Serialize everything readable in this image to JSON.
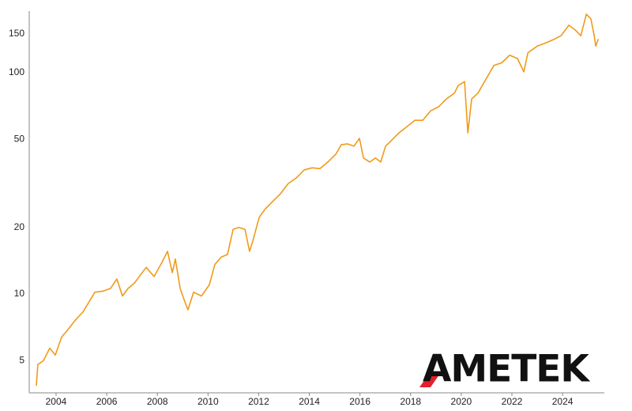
{
  "chart_data": {
    "type": "line",
    "logo": "AMETEK",
    "log_y": true,
    "grid": false,
    "xlim": [
      2002.94,
      2025.65
    ],
    "xticks": [
      2004,
      2006,
      2008,
      2010,
      2012,
      2014,
      2016,
      2018,
      2020,
      2022,
      2024
    ],
    "ylim": [
      3.58,
      190
    ],
    "yticks": [
      5,
      10,
      20,
      50,
      100,
      150
    ],
    "series": [
      {
        "color": "#f09a1a",
        "x": [
          2003.22,
          2003.28,
          2003.5,
          2003.75,
          2003.97,
          2004.22,
          2004.44,
          2004.75,
          2005.06,
          2005.37,
          2005.53,
          2005.84,
          2006.15,
          2006.4,
          2006.62,
          2006.84,
          2007.09,
          2007.4,
          2007.56,
          2007.87,
          2008.18,
          2008.4,
          2008.59,
          2008.71,
          2008.9,
          2009.12,
          2009.21,
          2009.43,
          2009.74,
          2010.05,
          2010.27,
          2010.52,
          2010.77,
          2010.99,
          2011.21,
          2011.46,
          2011.64,
          2011.77,
          2012.02,
          2012.24,
          2012.55,
          2012.86,
          2013.17,
          2013.49,
          2013.8,
          2014.11,
          2014.42,
          2014.73,
          2015.05,
          2015.26,
          2015.51,
          2015.76,
          2015.98,
          2016.14,
          2016.39,
          2016.61,
          2016.82,
          2017.01,
          2017.23,
          2017.54,
          2017.85,
          2018.17,
          2018.48,
          2018.79,
          2019.1,
          2019.41,
          2019.73,
          2019.88,
          2020.13,
          2020.26,
          2020.41,
          2020.66,
          2020.97,
          2021.29,
          2021.6,
          2021.91,
          2022.22,
          2022.47,
          2022.63,
          2023.0,
          2023.31,
          2023.63,
          2023.94,
          2024.25,
          2024.5,
          2024.72,
          2024.94,
          2025.12,
          2025.25,
          2025.31,
          2025.41
        ],
        "values": [
          3.85,
          4.8,
          5.0,
          5.7,
          5.3,
          6.4,
          6.85,
          7.6,
          8.3,
          9.5,
          10.2,
          10.3,
          10.6,
          11.7,
          9.8,
          10.6,
          11.2,
          12.5,
          13.2,
          12.0,
          13.9,
          15.6,
          12.5,
          14.4,
          10.6,
          9.0,
          8.5,
          10.2,
          9.8,
          11.0,
          13.6,
          14.7,
          15.1,
          19.6,
          20.0,
          19.6,
          15.6,
          17.4,
          22.2,
          24.1,
          26.2,
          28.4,
          31.6,
          33.5,
          36.4,
          37.2,
          36.9,
          39.5,
          42.9,
          47.3,
          47.7,
          46.6,
          50.5,
          41.2,
          39.5,
          41.2,
          39.5,
          46.6,
          49.3,
          53.5,
          57.0,
          61.0,
          61.0,
          67.3,
          70.1,
          76.1,
          80.9,
          87.6,
          91.2,
          53.5,
          76.1,
          80.9,
          93.4,
          108,
          111,
          120,
          116,
          101,
          123,
          132,
          136,
          141,
          147,
          164,
          156,
          147,
          184,
          175,
          147,
          132,
          142
        ]
      }
    ]
  }
}
